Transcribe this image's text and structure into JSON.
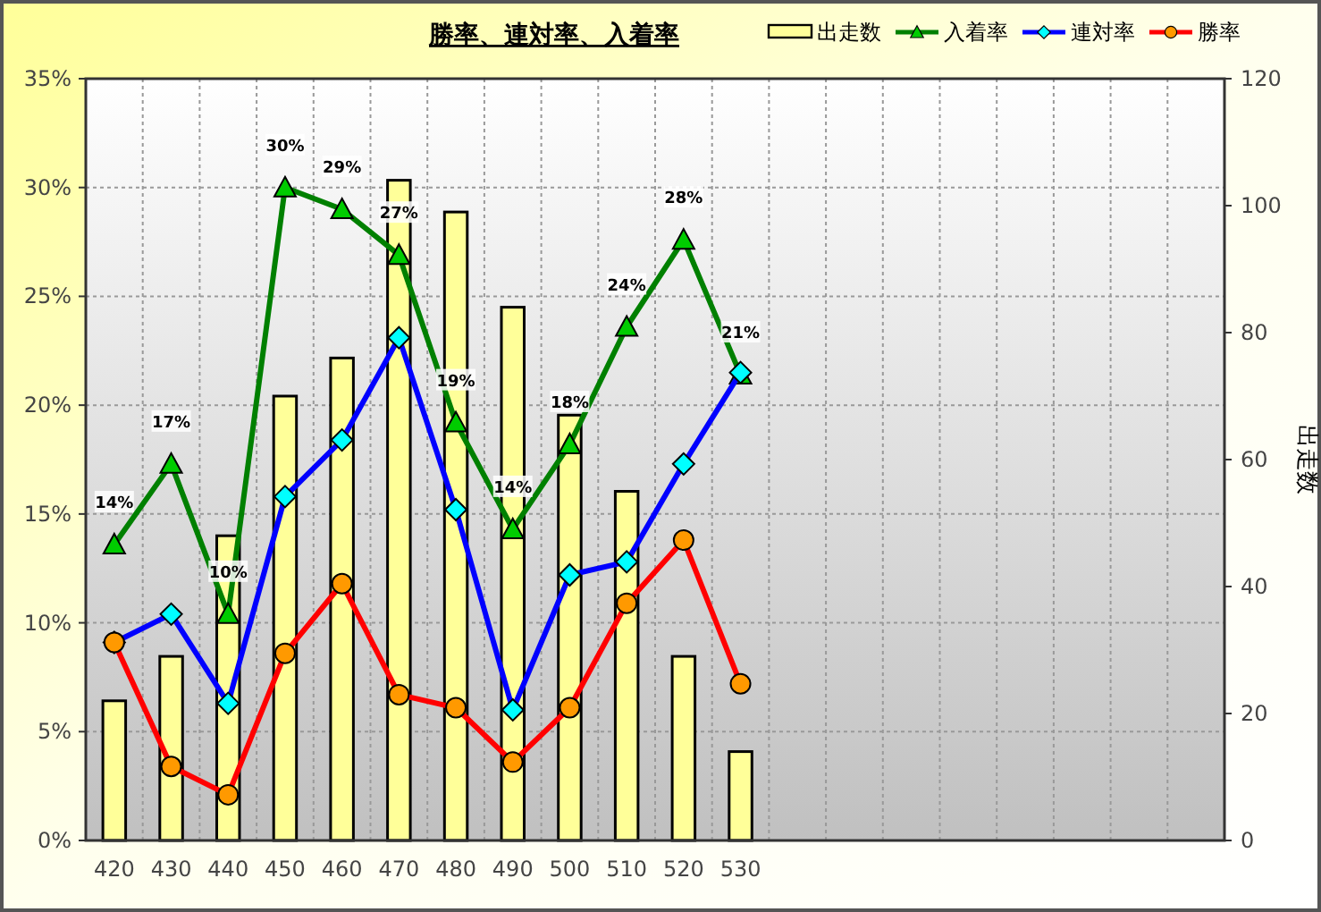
{
  "chart_data": {
    "type": "bar",
    "title": "勝率、連対率、入着率",
    "y2label": "出走数",
    "categories": [
      "420",
      "430",
      "440",
      "450",
      "460",
      "470",
      "480",
      "490",
      "500",
      "510",
      "520",
      "530",
      null,
      null,
      null,
      null,
      null,
      null,
      null,
      null
    ],
    "series": [
      {
        "name": "出走数",
        "axis": "y2",
        "color": "#ffff99",
        "values": [
          22,
          29,
          48,
          70,
          76,
          104,
          99,
          84,
          67,
          55,
          29,
          14,
          null,
          null,
          null,
          null,
          null,
          null,
          null,
          null
        ]
      },
      {
        "name": "入着率",
        "type": "line",
        "marker": "triangle",
        "color": "#008000",
        "colors": [
          "#00cc00",
          "#00cc00",
          "#00cc00",
          "#00cc00",
          "#00cc00",
          "#00cc00",
          "#00cc00",
          "#00cc00",
          "#00cc00",
          "#00cc00",
          "#00cc00",
          "#00cc00",
          null,
          null,
          null,
          null,
          null,
          null,
          null,
          null
        ],
        "values": [
          13.6,
          17.3,
          10.4,
          30.0,
          29.0,
          26.9,
          19.2,
          14.3,
          18.2,
          23.6,
          27.6,
          21.4,
          null,
          null,
          null,
          null,
          null,
          null,
          null,
          null
        ],
        "value_labels": [
          "14%",
          "17%",
          "10%",
          "30%",
          "29%",
          "27%",
          "19%",
          "14%",
          "18%",
          "24%",
          "28%",
          "21%",
          null,
          null,
          null,
          null,
          null,
          null,
          null,
          null
        ]
      },
      {
        "name": "連対率",
        "type": "line",
        "marker": "diamond",
        "color": "#0000ff",
        "colors": [
          "#00ffff",
          "#00ffff",
          "#00ffff",
          "#00ffff",
          "#00ffff",
          "#00ffff",
          "#00ffff",
          "#00ffff",
          "#00ffff",
          "#00ffff",
          "#00ffff",
          "#00ffff",
          null,
          null,
          null,
          null,
          null,
          null,
          null,
          null
        ],
        "values": [
          9.1,
          10.4,
          6.3,
          15.8,
          18.4,
          23.1,
          15.2,
          6.0,
          12.2,
          12.8,
          17.3,
          21.5,
          null,
          null,
          null,
          null,
          null,
          null,
          null,
          null
        ]
      },
      {
        "name": "勝率",
        "type": "line",
        "marker": "circle",
        "color": "#ff0000",
        "colors": [
          "#ff9900",
          "#ff9900",
          "#ff9900",
          "#ff9900",
          "#ff9900",
          "#ff9900",
          "#ff9900",
          "#ff9900",
          "#ff9900",
          "#ff9900",
          "#ff9900",
          "#ff9900",
          null,
          null,
          null,
          null,
          null,
          null,
          null,
          null
        ],
        "values": [
          9.1,
          3.4,
          2.1,
          8.6,
          11.8,
          6.7,
          6.1,
          3.6,
          6.1,
          10.9,
          13.8,
          7.2,
          null,
          null,
          null,
          null,
          null,
          null,
          null,
          null
        ]
      }
    ],
    "ylim": [
      0,
      35
    ],
    "yticks": [
      {
        "value": 0,
        "label": "0%"
      },
      {
        "value": 5,
        "label": "5%"
      },
      {
        "value": 10,
        "label": "10%"
      },
      {
        "value": 15,
        "label": "15%"
      },
      {
        "value": 20,
        "label": "20%"
      },
      {
        "value": 25,
        "label": "25%"
      },
      {
        "value": 30,
        "label": "30%"
      },
      {
        "value": 35,
        "label": "35%"
      }
    ],
    "y2lim": [
      0,
      120
    ],
    "y2ticks": [
      0,
      20,
      40,
      60,
      80,
      100,
      120
    ],
    "grid": true,
    "legend": "top right"
  }
}
